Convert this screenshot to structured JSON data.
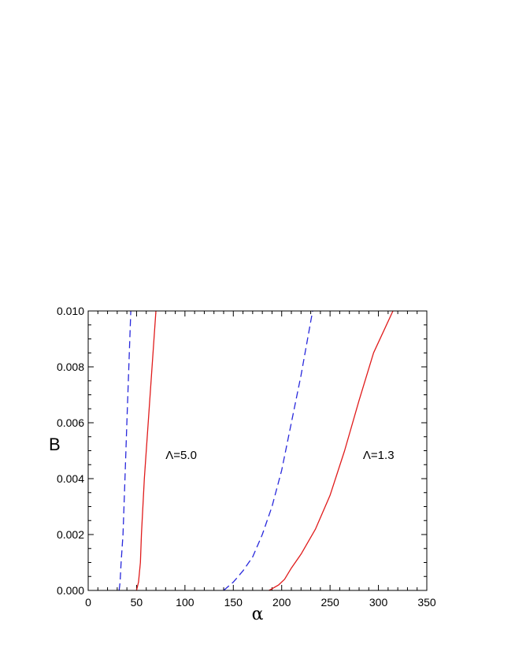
{
  "chart_data": {
    "type": "line",
    "title": "",
    "xlabel": "α",
    "ylabel": "B",
    "xlim": [
      0,
      350
    ],
    "ylim": [
      0,
      0.01
    ],
    "x_ticks": [
      "0",
      "50",
      "100",
      "150",
      "200",
      "250",
      "300",
      "350"
    ],
    "y_ticks": [
      "0.000",
      "0.002",
      "0.004",
      "0.006",
      "0.008",
      "0.010"
    ],
    "grid": false,
    "annotations": [
      {
        "text": "Λ=5.0",
        "x": 80,
        "y": 0.0047
      },
      {
        "text": "Λ=1.3",
        "x": 284,
        "y": 0.0047
      }
    ],
    "series": [
      {
        "style": "dashed",
        "color": "#2828dc",
        "points": [
          [
            32,
            0
          ],
          [
            33,
            0.0003
          ],
          [
            34,
            0.001
          ],
          [
            36,
            0.002
          ],
          [
            38,
            0.004
          ],
          [
            40,
            0.006
          ],
          [
            42,
            0.008
          ],
          [
            44,
            0.01
          ]
        ]
      },
      {
        "style": "solid",
        "color": "#e01b1b",
        "points": [
          [
            50,
            0
          ],
          [
            52,
            0.0003
          ],
          [
            54,
            0.001
          ],
          [
            55,
            0.002
          ],
          [
            58,
            0.004
          ],
          [
            62,
            0.006
          ],
          [
            66,
            0.008
          ],
          [
            70,
            0.01
          ]
        ]
      },
      {
        "style": "dashed",
        "color": "#2828dc",
        "points": [
          [
            140,
            0
          ],
          [
            150,
            0.0003
          ],
          [
            160,
            0.0007
          ],
          [
            170,
            0.0012
          ],
          [
            180,
            0.002
          ],
          [
            190,
            0.003
          ],
          [
            200,
            0.0043
          ],
          [
            210,
            0.006
          ],
          [
            220,
            0.0077
          ],
          [
            232,
            0.01
          ]
        ]
      },
      {
        "style": "solid",
        "color": "#e01b1b",
        "points": [
          [
            187,
            0
          ],
          [
            197,
            0.0002
          ],
          [
            203,
            0.0004
          ],
          [
            210,
            0.0008
          ],
          [
            220,
            0.0013
          ],
          [
            235,
            0.0022
          ],
          [
            250,
            0.0034
          ],
          [
            265,
            0.005
          ],
          [
            280,
            0.0068
          ],
          [
            295,
            0.0085
          ],
          [
            315,
            0.01
          ]
        ]
      }
    ]
  }
}
